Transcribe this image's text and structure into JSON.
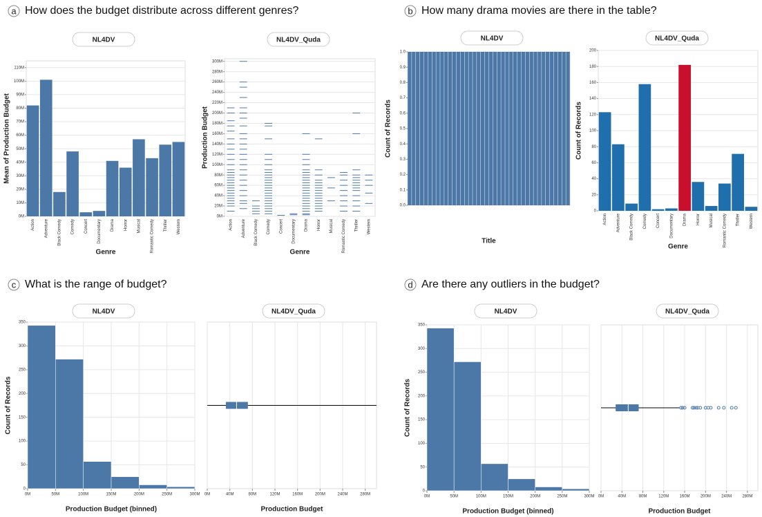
{
  "panels": [
    {
      "letter": "a",
      "question": "How does the budget distribute across different genres?"
    },
    {
      "letter": "b",
      "question": "How many drama movies are there in the table?"
    },
    {
      "letter": "c",
      "question": "What is the range of budget?"
    },
    {
      "letter": "d",
      "question": "Are there any outliers in the budget?"
    }
  ],
  "chart_data": [
    {
      "type": "bar",
      "title": "NL4DV",
      "x_label": "Genre",
      "y_label": "Mean of Production Budget",
      "color": "#4c78a8",
      "grid": true,
      "categories": [
        "Action",
        "Adventure",
        "Black Comedy",
        "Comedy",
        "Concert",
        "Documentary",
        "Drama",
        "Horror",
        "Musical",
        "Romantic Comedy",
        "Thriller",
        "Western"
      ],
      "values": [
        82,
        101,
        18,
        48,
        3,
        4,
        41,
        36,
        57,
        43,
        53,
        55
      ],
      "ylim": [
        0,
        115
      ],
      "yticks": [
        {
          "value": 0,
          "label": "0M"
        },
        {
          "value": 10,
          "label": "10M"
        },
        {
          "value": 20,
          "label": "20M"
        },
        {
          "value": 30,
          "label": "30M"
        },
        {
          "value": 40,
          "label": "40M"
        },
        {
          "value": 50,
          "label": "50M"
        },
        {
          "value": 60,
          "label": "60M"
        },
        {
          "value": 70,
          "label": "70M"
        },
        {
          "value": 80,
          "label": "80M"
        },
        {
          "value": 90,
          "label": "90M"
        },
        {
          "value": 100,
          "label": "100M"
        },
        {
          "value": 110,
          "label": "110M"
        }
      ]
    },
    {
      "type": "tick",
      "title": "NL4DV_Quda",
      "x_label": "Genre",
      "y_label": "Production Budget",
      "color": "#4c78a8",
      "grid": true,
      "categories": [
        "Action",
        "Adventure",
        "Black Comedy",
        "Comedy",
        "Concert",
        "Documentary",
        "Drama",
        "Horror",
        "Musical",
        "Romantic Comedy",
        "Thriller",
        "Western"
      ],
      "values": [
        [
          10,
          20,
          25,
          30,
          35,
          40,
          45,
          50,
          55,
          60,
          65,
          70,
          75,
          80,
          85,
          90,
          100,
          110,
          120,
          130,
          140,
          150,
          165,
          175,
          185,
          200,
          210
        ],
        [
          15,
          25,
          30,
          40,
          50,
          60,
          70,
          80,
          90,
          100,
          110,
          120,
          130,
          140,
          150,
          160,
          175,
          190,
          200,
          210,
          230,
          250,
          260,
          300
        ],
        [
          5,
          10,
          15,
          20,
          30
        ],
        [
          5,
          10,
          15,
          20,
          25,
          30,
          35,
          40,
          45,
          50,
          55,
          60,
          65,
          70,
          75,
          80,
          85,
          90,
          100,
          110,
          120,
          150,
          175,
          180
        ],
        [
          2
        ],
        [
          3,
          5
        ],
        [
          3,
          5,
          10,
          15,
          20,
          25,
          30,
          35,
          40,
          45,
          50,
          55,
          60,
          65,
          70,
          75,
          80,
          85,
          90,
          100,
          110,
          120,
          160
        ],
        [
          10,
          15,
          20,
          25,
          30,
          35,
          40,
          45,
          50,
          55,
          60,
          65,
          70,
          80,
          90,
          150
        ],
        [
          30,
          55,
          75
        ],
        [
          10,
          20,
          30,
          40,
          50,
          60,
          70,
          80,
          85
        ],
        [
          10,
          20,
          30,
          40,
          50,
          55,
          60,
          65,
          70,
          75,
          80,
          90,
          160,
          200
        ],
        [
          25,
          45,
          60,
          70,
          80
        ]
      ],
      "ylim": [
        0,
        305
      ],
      "yticks": [
        {
          "value": 0,
          "label": "0M"
        },
        {
          "value": 20,
          "label": "20M"
        },
        {
          "value": 40,
          "label": "40M"
        },
        {
          "value": 60,
          "label": "60M"
        },
        {
          "value": 80,
          "label": "80M"
        },
        {
          "value": 100,
          "label": "100M"
        },
        {
          "value": 120,
          "label": "120M"
        },
        {
          "value": 140,
          "label": "140M"
        },
        {
          "value": 160,
          "label": "160M"
        },
        {
          "value": 180,
          "label": "180M"
        },
        {
          "value": 200,
          "label": "200M"
        },
        {
          "value": 220,
          "label": "220M"
        },
        {
          "value": 240,
          "label": "240M"
        },
        {
          "value": 260,
          "label": "260M"
        },
        {
          "value": 280,
          "label": "280M"
        },
        {
          "value": 300,
          "label": "300M"
        }
      ]
    },
    {
      "type": "bar",
      "title": "NL4DV",
      "x_label": "Title",
      "y_label": "Count of Records",
      "color": "#4c78a8",
      "grid": false,
      "categories": [
        null,
        null,
        null,
        null,
        null,
        null,
        null,
        null,
        null,
        null,
        null,
        null,
        null,
        null,
        null,
        null,
        null,
        null,
        null,
        null,
        null,
        null,
        null,
        null,
        null,
        null,
        null,
        null,
        null,
        null,
        null,
        null,
        null,
        null,
        null,
        null,
        null,
        null,
        null,
        null
      ],
      "values": [
        1,
        1,
        1,
        1,
        1,
        1,
        1,
        1,
        1,
        1,
        1,
        1,
        1,
        1,
        1,
        1,
        1,
        1,
        1,
        1,
        1,
        1,
        1,
        1,
        1,
        1,
        1,
        1,
        1,
        1,
        1,
        1,
        1,
        1,
        1,
        1,
        1,
        1,
        1,
        1
      ],
      "ylim": [
        0,
        1
      ],
      "yticks": [
        {
          "value": 0,
          "label": "0.0"
        },
        0.1,
        0.2,
        0.3,
        0.4,
        0.5,
        0.6,
        0.7,
        0.8,
        0.9,
        {
          "value": 1,
          "label": "1.0"
        }
      ]
    },
    {
      "type": "bar",
      "title": "NL4DV_Quda",
      "x_label": "Genre",
      "y_label": "Count of Records",
      "grid": true,
      "categories": [
        "Action",
        "Adventure",
        "Black Comedy",
        "Comedy",
        "Concert",
        "Documentary",
        "Drama",
        "Horror",
        "Musical",
        "Romantic Comedy",
        "Thriller",
        "Western"
      ],
      "values": [
        123,
        83,
        9,
        158,
        2,
        3,
        182,
        36,
        6,
        34,
        71,
        5
      ],
      "colors": [
        "#1f6fad",
        "#1f6fad",
        "#1f6fad",
        "#1f6fad",
        "#1f6fad",
        "#1f6fad",
        "#c8102e",
        "#1f6fad",
        "#1f6fad",
        "#1f6fad",
        "#1f6fad",
        "#1f6fad"
      ],
      "ylim": [
        0,
        200
      ],
      "yticks": [
        0,
        20,
        40,
        60,
        80,
        100,
        120,
        140,
        160,
        180,
        200
      ]
    },
    {
      "type": "histogram",
      "title": "NL4DV",
      "x_label": "Production Budget (binned)",
      "y_label": "Count of Records",
      "color": "#4c78a8",
      "grid": true,
      "bins": [
        0,
        50,
        100,
        150,
        200,
        250,
        300
      ],
      "counts": [
        343,
        272,
        57,
        25,
        8,
        4
      ],
      "xlim": [
        0,
        300
      ],
      "ylim": [
        0,
        350
      ],
      "xticks": [
        {
          "value": 0,
          "label": "0M"
        },
        {
          "value": 50,
          "label": "50M"
        },
        {
          "value": 100,
          "label": "100M"
        },
        {
          "value": 150,
          "label": "150M"
        },
        {
          "value": 200,
          "label": "200M"
        },
        {
          "value": 250,
          "label": "250M"
        },
        {
          "value": 300,
          "label": "300M"
        }
      ],
      "yticks": [
        0,
        50,
        100,
        150,
        200,
        250,
        300,
        350
      ]
    },
    {
      "type": "boxplot",
      "title": "NL4DV_Quda",
      "x_label": "Production Budget",
      "color": "#4c78a8",
      "grid": true,
      "min": 0,
      "q1": 33,
      "median": 52,
      "q3": 72,
      "max": 300,
      "outliers": [],
      "xlim": [
        0,
        300
      ],
      "xticks": [
        {
          "value": 0,
          "label": "0M"
        },
        {
          "value": 40,
          "label": "40M"
        },
        {
          "value": 80,
          "label": "80M"
        },
        {
          "value": 120,
          "label": "120M"
        },
        {
          "value": 160,
          "label": "160M"
        },
        {
          "value": 200,
          "label": "200M"
        },
        {
          "value": 240,
          "label": "240M"
        },
        {
          "value": 280,
          "label": "280M"
        }
      ]
    },
    {
      "type": "histogram",
      "title": "NL4DV",
      "x_label": "Production Budget (binned)",
      "y_label": "Count of Records",
      "color": "#4c78a8",
      "grid": true,
      "bins": [
        0,
        50,
        100,
        150,
        200,
        250,
        300
      ],
      "counts": [
        343,
        272,
        57,
        25,
        8,
        4
      ],
      "xlim": [
        0,
        300
      ],
      "ylim": [
        0,
        350
      ],
      "xticks": [
        {
          "value": 0,
          "label": "0M"
        },
        {
          "value": 50,
          "label": "50M"
        },
        {
          "value": 100,
          "label": "100M"
        },
        {
          "value": 150,
          "label": "150M"
        },
        {
          "value": 200,
          "label": "200M"
        },
        {
          "value": 250,
          "label": "250M"
        },
        {
          "value": 300,
          "label": "300M"
        }
      ],
      "yticks": [
        0,
        50,
        100,
        150,
        200,
        250,
        300,
        350
      ]
    },
    {
      "type": "boxplot",
      "title": "NL4DV_Quda",
      "x_label": "Production Budget",
      "color": "#4c78a8",
      "grid": true,
      "min": 0,
      "q1": 28,
      "median": 52,
      "q3": 72,
      "max": 150,
      "outliers": [
        153,
        156,
        160,
        175,
        178,
        182,
        185,
        190,
        200,
        205,
        210,
        225,
        235,
        250,
        258
      ],
      "xlim": [
        0,
        300
      ],
      "xticks": [
        {
          "value": 0,
          "label": "0M"
        },
        {
          "value": 40,
          "label": "40M"
        },
        {
          "value": 80,
          "label": "80M"
        },
        {
          "value": 120,
          "label": "120M"
        },
        {
          "value": 160,
          "label": "160M"
        },
        {
          "value": 200,
          "label": "200M"
        },
        {
          "value": 240,
          "label": "240M"
        },
        {
          "value": 280,
          "label": "280M"
        }
      ]
    }
  ]
}
